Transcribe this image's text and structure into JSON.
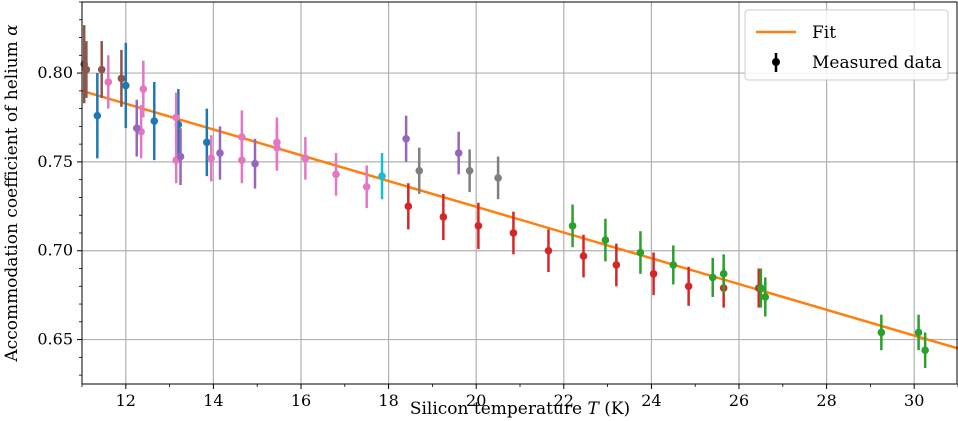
{
  "chart_data": {
    "type": "scatter",
    "xlabel_prefix": "Silicon temperature ",
    "xlabel_var": "T",
    "xlabel_suffix": " (K)",
    "ylabel_prefix": "Accommodation coefficient of helium ",
    "ylabel_var": "α",
    "xlim": [
      11.0,
      31.0
    ],
    "ylim": [
      0.625,
      0.84
    ],
    "xticks": [
      12,
      14,
      16,
      18,
      20,
      22,
      24,
      26,
      28,
      30
    ],
    "xtick_labels": [
      "12",
      "14",
      "16",
      "18",
      "20",
      "22",
      "24",
      "26",
      "28",
      "30"
    ],
    "yticks": [
      0.65,
      0.7,
      0.75,
      0.8
    ],
    "ytick_labels": [
      "0.65",
      "0.70",
      "0.75",
      "0.80"
    ],
    "grid": true,
    "legend": {
      "position": "top-right",
      "entries": [
        {
          "label": "Fit",
          "kind": "line",
          "color": "#ff7f0e"
        },
        {
          "label": "Measured data",
          "kind": "errorbar",
          "color": "#000000"
        }
      ]
    },
    "fit_line": {
      "color": "#ff7f0e",
      "x": [
        11.0,
        31.0
      ],
      "y": [
        0.79,
        0.645
      ]
    },
    "series": [
      {
        "color": "#8c564b",
        "points": [
          {
            "x": 11.05,
            "y": 0.805,
            "err": 0.022
          },
          {
            "x": 11.1,
            "y": 0.802,
            "err": 0.016
          },
          {
            "x": 11.45,
            "y": 0.802,
            "err": 0.016
          },
          {
            "x": 11.9,
            "y": 0.797,
            "err": 0.016
          }
        ]
      },
      {
        "color": "#1f77b4",
        "points": [
          {
            "x": 11.35,
            "y": 0.776,
            "err": 0.024
          },
          {
            "x": 12.0,
            "y": 0.793,
            "err": 0.024
          },
          {
            "x": 12.65,
            "y": 0.773,
            "err": 0.022
          },
          {
            "x": 13.2,
            "y": 0.771,
            "err": 0.02
          },
          {
            "x": 13.85,
            "y": 0.761,
            "err": 0.019
          }
        ]
      },
      {
        "color": "#e377c2",
        "points": [
          {
            "x": 11.6,
            "y": 0.795,
            "err": 0.015
          },
          {
            "x": 12.35,
            "y": 0.767,
            "err": 0.015
          },
          {
            "x": 12.4,
            "y": 0.791,
            "err": 0.016
          },
          {
            "x": 13.15,
            "y": 0.775,
            "err": 0.014
          },
          {
            "x": 13.15,
            "y": 0.751,
            "err": 0.013
          },
          {
            "x": 13.95,
            "y": 0.752,
            "err": 0.013
          },
          {
            "x": 14.65,
            "y": 0.764,
            "err": 0.015
          },
          {
            "x": 14.65,
            "y": 0.751,
            "err": 0.013
          },
          {
            "x": 15.45,
            "y": 0.761,
            "err": 0.014
          },
          {
            "x": 15.45,
            "y": 0.758,
            "err": 0.013
          },
          {
            "x": 16.1,
            "y": 0.752,
            "err": 0.012
          },
          {
            "x": 16.8,
            "y": 0.743,
            "err": 0.012
          },
          {
            "x": 17.5,
            "y": 0.736,
            "err": 0.012
          }
        ]
      },
      {
        "color": "#9467bd",
        "points": [
          {
            "x": 12.25,
            "y": 0.769,
            "err": 0.016
          },
          {
            "x": 13.25,
            "y": 0.753,
            "err": 0.016
          },
          {
            "x": 14.15,
            "y": 0.755,
            "err": 0.015
          },
          {
            "x": 14.95,
            "y": 0.749,
            "err": 0.014
          },
          {
            "x": 18.4,
            "y": 0.763,
            "err": 0.013
          },
          {
            "x": 19.6,
            "y": 0.755,
            "err": 0.012
          }
        ]
      },
      {
        "color": "#17becf",
        "points": [
          {
            "x": 17.85,
            "y": 0.742,
            "err": 0.013
          }
        ]
      },
      {
        "color": "#7f7f7f",
        "points": [
          {
            "x": 18.7,
            "y": 0.745,
            "err": 0.013
          },
          {
            "x": 19.85,
            "y": 0.745,
            "err": 0.012
          },
          {
            "x": 20.5,
            "y": 0.741,
            "err": 0.012
          }
        ]
      },
      {
        "color": "#d62728",
        "points": [
          {
            "x": 18.45,
            "y": 0.725,
            "err": 0.013
          },
          {
            "x": 19.25,
            "y": 0.719,
            "err": 0.013
          },
          {
            "x": 20.05,
            "y": 0.714,
            "err": 0.013
          },
          {
            "x": 20.85,
            "y": 0.71,
            "err": 0.012
          },
          {
            "x": 21.65,
            "y": 0.7,
            "err": 0.012
          },
          {
            "x": 22.45,
            "y": 0.697,
            "err": 0.012
          },
          {
            "x": 23.2,
            "y": 0.692,
            "err": 0.012
          },
          {
            "x": 24.05,
            "y": 0.687,
            "err": 0.012
          },
          {
            "x": 24.85,
            "y": 0.68,
            "err": 0.011
          },
          {
            "x": 25.65,
            "y": 0.679,
            "err": 0.011
          },
          {
            "x": 26.45,
            "y": 0.679,
            "err": 0.011
          }
        ]
      },
      {
        "color": "#2ca02c",
        "points": [
          {
            "x": 22.2,
            "y": 0.714,
            "err": 0.012
          },
          {
            "x": 22.95,
            "y": 0.706,
            "err": 0.012
          },
          {
            "x": 23.75,
            "y": 0.699,
            "err": 0.012
          },
          {
            "x": 24.5,
            "y": 0.692,
            "err": 0.011
          },
          {
            "x": 25.4,
            "y": 0.685,
            "err": 0.011
          },
          {
            "x": 25.65,
            "y": 0.687,
            "err": 0.011
          },
          {
            "x": 26.5,
            "y": 0.679,
            "err": 0.011
          },
          {
            "x": 26.6,
            "y": 0.674,
            "err": 0.011
          },
          {
            "x": 29.25,
            "y": 0.654,
            "err": 0.01
          },
          {
            "x": 30.1,
            "y": 0.654,
            "err": 0.01
          },
          {
            "x": 30.25,
            "y": 0.644,
            "err": 0.01
          }
        ]
      }
    ]
  }
}
